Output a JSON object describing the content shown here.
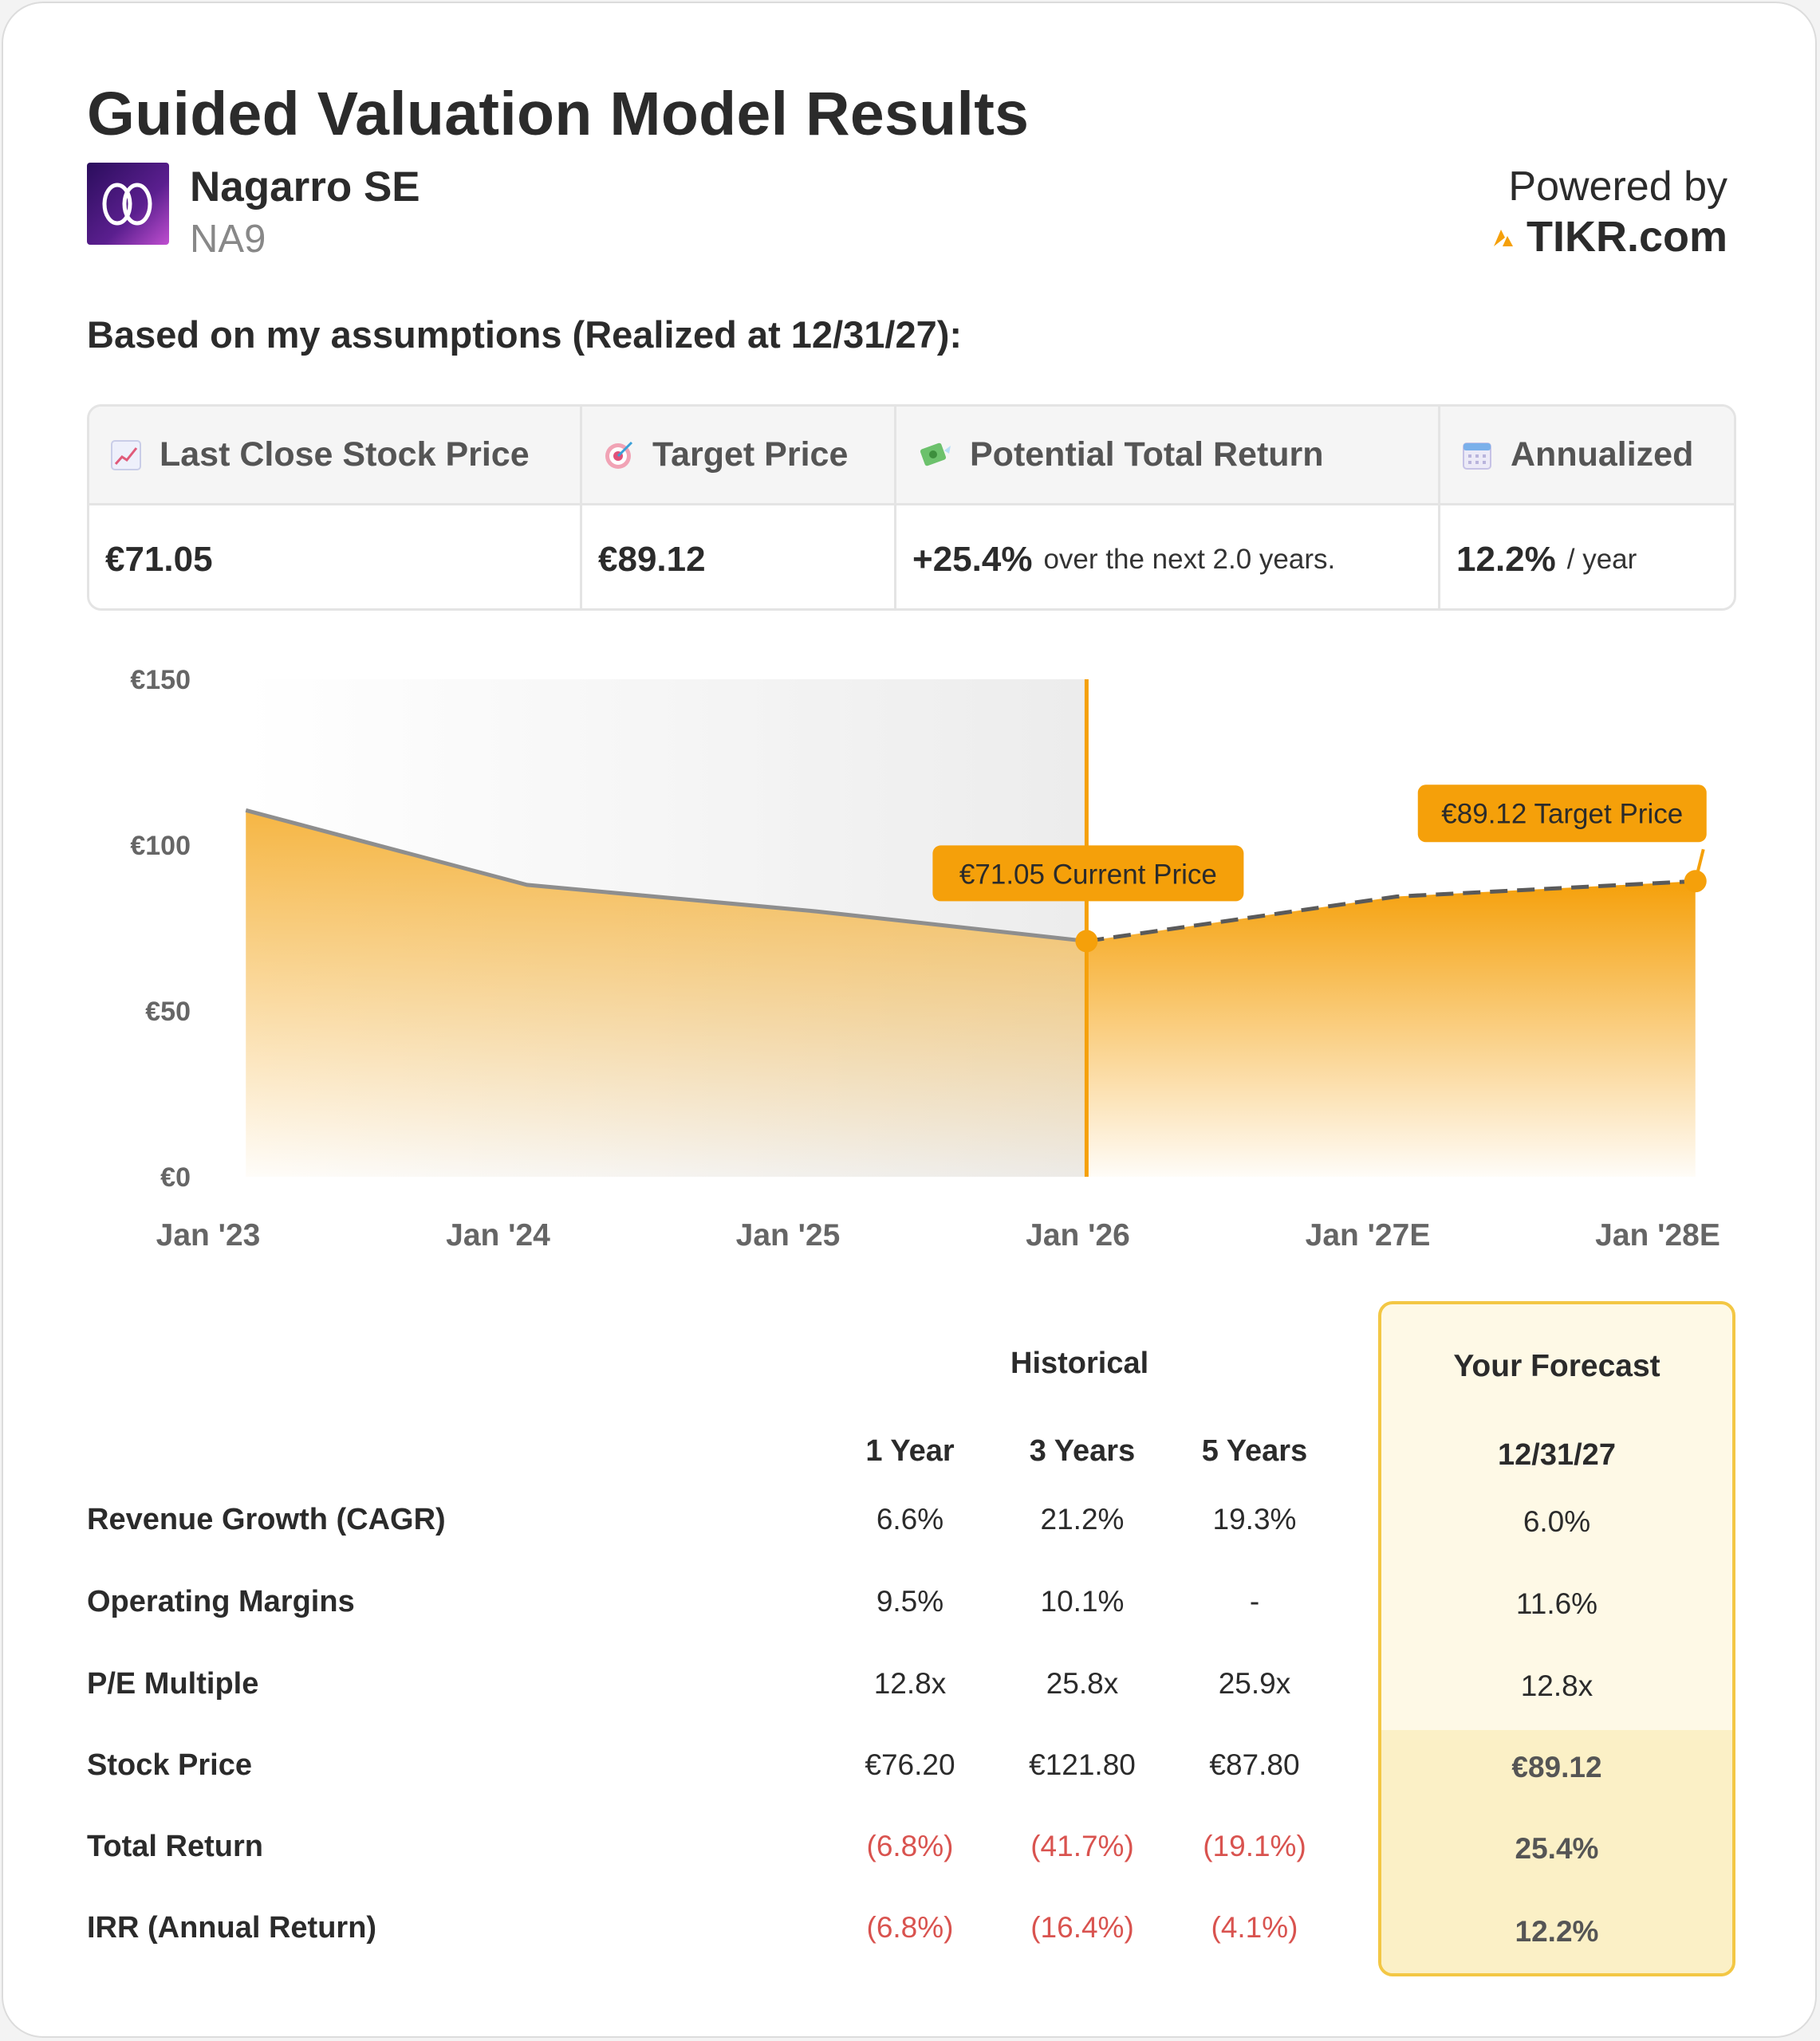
{
  "header": {
    "title": "Guided Valuation Model Results",
    "company_name": "Nagarro SE",
    "ticker": "NA9",
    "powered_by": "Powered by",
    "brand": "TIKR.com"
  },
  "subtitle": "Based on my assumptions (Realized at 12/31/27):",
  "metrics": [
    {
      "icon": "chart-up-icon",
      "label": "Last Close Stock Price",
      "value": "€71.05",
      "note": ""
    },
    {
      "icon": "target-icon",
      "label": "Target Price",
      "value": "€89.12",
      "note": ""
    },
    {
      "icon": "money-wings-icon",
      "label": "Potential Total Return",
      "value": "+25.4%",
      "note": "over the next 2.0 years."
    },
    {
      "icon": "calendar-icon",
      "label": "Annualized",
      "value": "12.2%",
      "note": "/ year"
    }
  ],
  "chart_data": {
    "type": "area",
    "title": "",
    "xlabel": "",
    "ylabel": "",
    "ylim": [
      0,
      150
    ],
    "y_ticks": [
      "€150",
      "€100",
      "€50",
      "€0"
    ],
    "y_tick_values": [
      150,
      100,
      50,
      0
    ],
    "x_ticks": [
      "Jan '23",
      "Jan '24",
      "Jan '25",
      "Jan '26",
      "Jan '27E",
      "Jan '28E"
    ],
    "x_tick_positions": [
      2023.0,
      2024.0,
      2025.0,
      2026.0,
      2027.0,
      2028.0
    ],
    "xlim": [
      2023.0,
      2028.0
    ],
    "series": [
      {
        "name": "Historical",
        "style": "solid",
        "x": [
          2023.13,
          2024.1,
          2025.1,
          2026.03
        ],
        "values": [
          110.5,
          88,
          80,
          71.05
        ]
      },
      {
        "name": "Forecast",
        "style": "dashed",
        "x": [
          2026.03,
          2027.1,
          2028.13
        ],
        "values": [
          71.05,
          84.5,
          89.12
        ]
      }
    ],
    "annotations": [
      {
        "label": "€71.05 Current Price",
        "x": 2026.03,
        "y": 71.05
      },
      {
        "label": "€89.12 Target Price",
        "x": 2028.13,
        "y": 89.12
      }
    ],
    "divider_x": 2026.03,
    "colors": {
      "accent": "#f5a00a",
      "line": "#8e8e8e",
      "text": "#666666"
    }
  },
  "table": {
    "historical_label": "Historical",
    "forecast_label": "Your Forecast",
    "columns": [
      "1 Year",
      "3 Years",
      "5 Years"
    ],
    "forecast_date": "12/31/27",
    "rows": [
      {
        "label": "Revenue Growth (CAGR)",
        "values": [
          "6.6%",
          "21.2%",
          "19.3%"
        ],
        "forecast": "6.0%",
        "negative": false,
        "highlight": false
      },
      {
        "label": "Operating Margins",
        "values": [
          "9.5%",
          "10.1%",
          "-"
        ],
        "forecast": "11.6%",
        "negative": false,
        "highlight": false
      },
      {
        "label": "P/E Multiple",
        "values": [
          "12.8x",
          "25.8x",
          "25.9x"
        ],
        "forecast": "12.8x",
        "negative": false,
        "highlight": false
      },
      {
        "label": "Stock Price",
        "values": [
          "€76.20",
          "€121.80",
          "€87.80"
        ],
        "forecast": "€89.12",
        "negative": false,
        "highlight": true
      },
      {
        "label": "Total Return",
        "values": [
          "(6.8%)",
          "(41.7%)",
          "(19.1%)"
        ],
        "forecast": "25.4%",
        "negative": true,
        "highlight": true
      },
      {
        "label": "IRR (Annual Return)",
        "values": [
          "(6.8%)",
          "(16.4%)",
          "(4.1%)"
        ],
        "forecast": "12.2%",
        "negative": true,
        "highlight": true
      }
    ]
  }
}
